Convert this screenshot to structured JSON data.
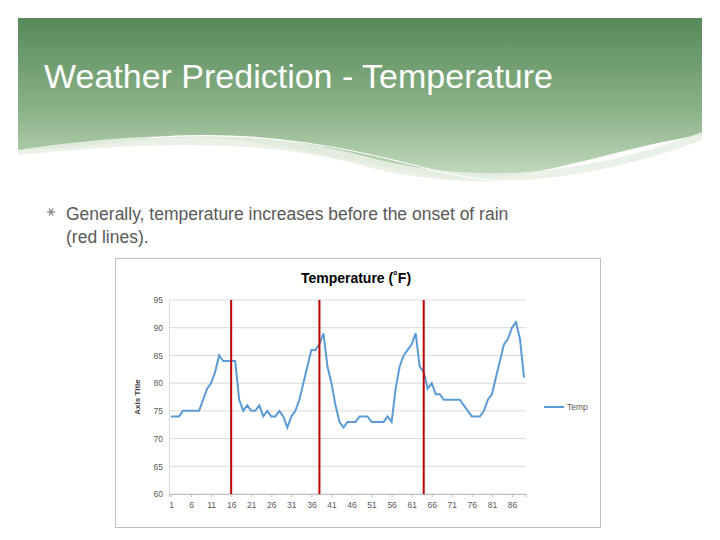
{
  "slide": {
    "title": "Weather Prediction - Temperature",
    "bullet": [
      "Generally, temperature increases before the onset of rain",
      "(red lines)."
    ]
  },
  "chart_data": {
    "type": "line",
    "title": "Temperature (˚F)",
    "y_label": "Axis Title",
    "x": [
      1,
      2,
      3,
      4,
      5,
      6,
      7,
      8,
      9,
      10,
      11,
      12,
      13,
      14,
      15,
      16,
      17,
      18,
      19,
      20,
      21,
      22,
      23,
      24,
      25,
      26,
      27,
      28,
      29,
      30,
      31,
      32,
      33,
      34,
      35,
      36,
      37,
      38,
      39,
      40,
      41,
      42,
      43,
      44,
      45,
      46,
      47,
      48,
      49,
      50,
      51,
      52,
      53,
      54,
      55,
      56,
      57,
      58,
      59,
      60,
      61,
      62,
      63,
      64,
      65,
      66,
      67,
      68,
      69,
      70,
      71,
      72,
      73,
      74,
      75,
      76,
      77,
      78,
      79,
      80,
      81,
      82,
      83,
      84,
      85,
      86,
      87,
      88,
      89
    ],
    "series": [
      {
        "name": "Temp",
        "color": "#5b9bd5",
        "values": [
          74,
          74,
          74,
          75,
          75,
          75,
          75,
          75,
          77,
          79,
          80,
          82,
          85,
          84,
          84,
          84,
          84,
          77,
          75,
          76,
          75,
          75,
          76,
          74,
          75,
          74,
          74,
          75,
          74,
          72,
          74,
          75,
          77,
          80,
          83,
          86,
          86,
          87,
          89,
          83,
          80,
          76,
          73,
          72,
          73,
          73,
          73,
          74,
          74,
          74,
          73,
          73,
          73,
          73,
          74,
          73,
          79,
          83,
          85,
          86,
          87,
          89,
          83,
          82,
          79,
          80,
          78,
          78,
          77,
          77,
          77,
          77,
          77,
          76,
          75,
          74,
          74,
          74,
          75,
          77,
          78,
          81,
          84,
          87,
          88,
          90,
          91,
          88,
          81
        ]
      }
    ],
    "vlines": [
      16,
      38,
      64
    ],
    "xlim": [
      0.5,
      89.5
    ],
    "xticks": [
      1,
      6,
      11,
      16,
      21,
      26,
      31,
      36,
      41,
      46,
      51,
      56,
      61,
      66,
      71,
      76,
      81,
      86
    ],
    "ylim": [
      60,
      95
    ],
    "yticks": [
      60,
      65,
      70,
      75,
      80,
      85,
      90,
      95
    ],
    "grid": true,
    "legend": "right"
  }
}
